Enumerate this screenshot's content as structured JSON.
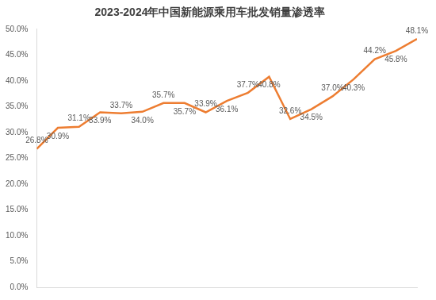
{
  "chart_data": {
    "type": "line",
    "title": "2023-2024年中国新能源乘用车批发销量渗透率",
    "categories": [
      null,
      null,
      null,
      null,
      null,
      null,
      null,
      null,
      null,
      null,
      null,
      null,
      null,
      null,
      null,
      null,
      null,
      null,
      null
    ],
    "values": [
      26.8,
      30.9,
      31.1,
      33.9,
      33.7,
      34.0,
      35.7,
      35.7,
      33.9,
      36.1,
      37.7,
      40.8,
      32.6,
      34.5,
      37.0,
      40.3,
      44.2,
      45.8,
      48.1
    ],
    "value_labels": [
      "26.8%",
      "30.9%",
      "31.1%",
      "33.9%",
      "33.7%",
      "34.0%",
      "35.7%",
      "35.7%",
      "33.9%",
      "36.1%",
      "37.7%",
      "40.8%",
      "32.6%",
      "34.5%",
      "37.0%",
      "40.3%",
      "44.2%",
      "45.8%",
      "48.1%"
    ],
    "color": "#ed7d31",
    "marker": "none",
    "line_style": "solid",
    "data_labels": true,
    "tick_labels": "y",
    "grid": false,
    "ylim": [
      0,
      50
    ],
    "yticks": [
      {
        "value": 0,
        "label": "0.0%"
      },
      {
        "value": 5,
        "label": "5.0%"
      },
      {
        "value": 10,
        "label": "10.0%"
      },
      {
        "value": 15,
        "label": "15.0%"
      },
      {
        "value": 20,
        "label": "20.0%"
      },
      {
        "value": 25,
        "label": "25.0%"
      },
      {
        "value": 30,
        "label": "30.0%"
      },
      {
        "value": 35,
        "label": "35.0%"
      },
      {
        "value": 40,
        "label": "40.0%"
      },
      {
        "value": 45,
        "label": "45.0%"
      },
      {
        "value": 50,
        "label": "50.0%"
      }
    ]
  }
}
